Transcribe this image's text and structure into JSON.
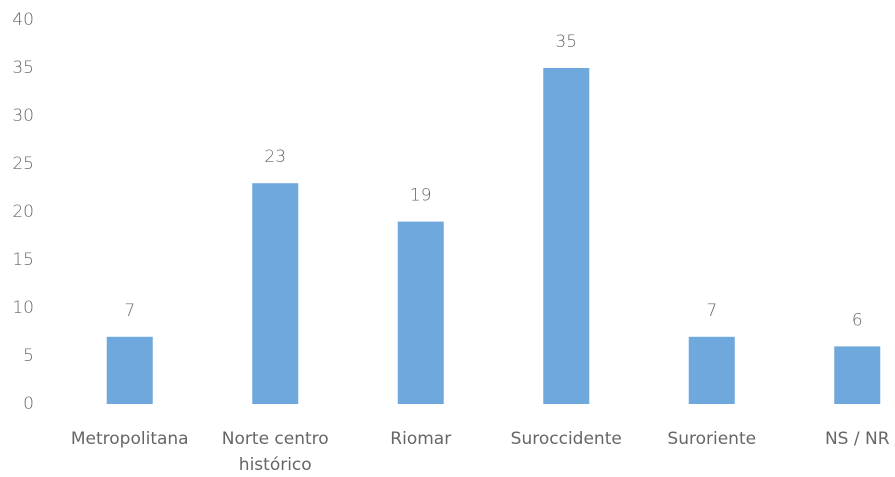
{
  "chart_data": {
    "type": "bar",
    "categories": [
      "Metropolitana",
      "Norte centro histórico",
      "Riomar",
      "Suroccidente",
      "Suroriente",
      "NS / NR"
    ],
    "values": [
      7,
      23,
      19,
      35,
      7,
      6
    ],
    "color": "#6fa8dc",
    "ylim": [
      0,
      40
    ],
    "yticks": [
      0,
      5,
      10,
      15,
      20,
      25,
      30,
      35,
      40
    ],
    "grid": false
  }
}
